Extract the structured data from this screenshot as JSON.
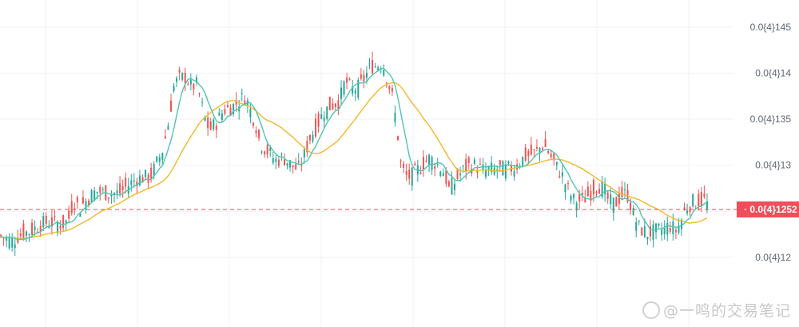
{
  "chart_data": {
    "type": "candlestick",
    "y_ticks": [
      {
        "value": 1.45e-05,
        "label": "0.0{4}145"
      },
      {
        "value": 1.4e-05,
        "label": "0.0{4}14"
      },
      {
        "value": 1.35e-05,
        "label": "0.0{4}135"
      },
      {
        "value": 1.3e-05,
        "label": "0.0{4}13"
      },
      {
        "value": 1.2e-05,
        "label": "0.0{4}12"
      }
    ],
    "ylim": [
      1.185e-05,
      1.48e-05
    ],
    "current_price": {
      "value": 1.252e-05,
      "label": "0.0{4}1252"
    },
    "grid": true,
    "colors": {
      "up": "#26a69a",
      "down": "#ef5350",
      "ma_fast": "#4fc6ae",
      "ma_slow": "#f3b829",
      "price_tag": "#ef4e5a",
      "grid": "#f0f2f5"
    },
    "price_path": [
      [
        0,
        1.2235
      ],
      [
        8,
        1.22
      ],
      [
        16,
        1.218
      ],
      [
        24,
        1.224
      ],
      [
        32,
        1.227
      ],
      [
        40,
        1.229
      ],
      [
        50,
        1.236
      ],
      [
        60,
        1.238
      ],
      [
        70,
        1.237
      ],
      [
        80,
        1.236
      ],
      [
        86,
        1.242
      ],
      [
        92,
        1.262
      ],
      [
        100,
        1.254
      ],
      [
        110,
        1.264
      ],
      [
        120,
        1.272
      ],
      [
        130,
        1.27
      ],
      [
        140,
        1.269
      ],
      [
        150,
        1.27
      ],
      [
        160,
        1.278
      ],
      [
        170,
        1.285
      ],
      [
        180,
        1.287
      ],
      [
        188,
        1.286
      ],
      [
        195,
        1.3
      ],
      [
        203,
        1.315
      ],
      [
        210,
        1.342
      ],
      [
        218,
        1.388
      ],
      [
        225,
        1.394
      ],
      [
        233,
        1.396
      ],
      [
        240,
        1.383
      ],
      [
        245,
        1.39
      ],
      [
        250,
        1.375
      ],
      [
        255,
        1.355
      ],
      [
        262,
        1.338
      ],
      [
        270,
        1.345
      ],
      [
        280,
        1.36
      ],
      [
        290,
        1.363
      ],
      [
        300,
        1.37
      ],
      [
        307,
        1.375
      ],
      [
        315,
        1.356
      ],
      [
        320,
        1.345
      ],
      [
        325,
        1.325
      ],
      [
        335,
        1.315
      ],
      [
        345,
        1.305
      ],
      [
        355,
        1.308
      ],
      [
        365,
        1.3
      ],
      [
        373,
        1.295
      ],
      [
        380,
        1.308
      ],
      [
        388,
        1.33
      ],
      [
        395,
        1.34
      ],
      [
        405,
        1.358
      ],
      [
        415,
        1.365
      ],
      [
        425,
        1.37
      ],
      [
        432,
        1.392
      ],
      [
        440,
        1.382
      ],
      [
        450,
        1.385
      ],
      [
        458,
        1.398
      ],
      [
        465,
        1.408
      ],
      [
        472,
        1.408
      ],
      [
        478,
        1.412
      ],
      [
        485,
        1.394
      ],
      [
        492,
        1.37
      ],
      [
        498,
        1.332
      ],
      [
        502,
        1.298
      ],
      [
        510,
        1.286
      ],
      [
        518,
        1.29
      ],
      [
        528,
        1.3
      ],
      [
        538,
        1.308
      ],
      [
        548,
        1.3
      ],
      [
        556,
        1.292
      ],
      [
        562,
        1.274
      ],
      [
        568,
        1.28
      ],
      [
        575,
        1.29
      ],
      [
        585,
        1.299
      ],
      [
        595,
        1.3
      ],
      [
        605,
        1.294
      ],
      [
        615,
        1.295
      ],
      [
        625,
        1.296
      ],
      [
        635,
        1.296
      ],
      [
        645,
        1.298
      ],
      [
        655,
        1.308
      ],
      [
        665,
        1.312
      ],
      [
        672,
        1.315
      ],
      [
        680,
        1.323
      ],
      [
        688,
        1.312
      ],
      [
        695,
        1.3
      ],
      [
        703,
        1.29
      ],
      [
        710,
        1.275
      ],
      [
        718,
        1.262
      ],
      [
        728,
        1.261
      ],
      [
        738,
        1.269
      ],
      [
        748,
        1.279
      ],
      [
        756,
        1.274
      ],
      [
        762,
        1.26
      ],
      [
        770,
        1.258
      ],
      [
        778,
        1.268
      ],
      [
        786,
        1.268
      ],
      [
        792,
        1.248
      ],
      [
        800,
        1.232
      ],
      [
        810,
        1.226
      ],
      [
        820,
        1.228
      ],
      [
        830,
        1.23
      ],
      [
        838,
        1.235
      ],
      [
        846,
        1.229
      ],
      [
        852,
        1.239
      ],
      [
        858,
        1.253
      ],
      [
        866,
        1.26
      ],
      [
        874,
        1.261
      ],
      [
        882,
        1.262
      ],
      [
        888,
        1.254
      ]
    ]
  },
  "watermark": {
    "text": "@一鸣的交易笔记"
  }
}
